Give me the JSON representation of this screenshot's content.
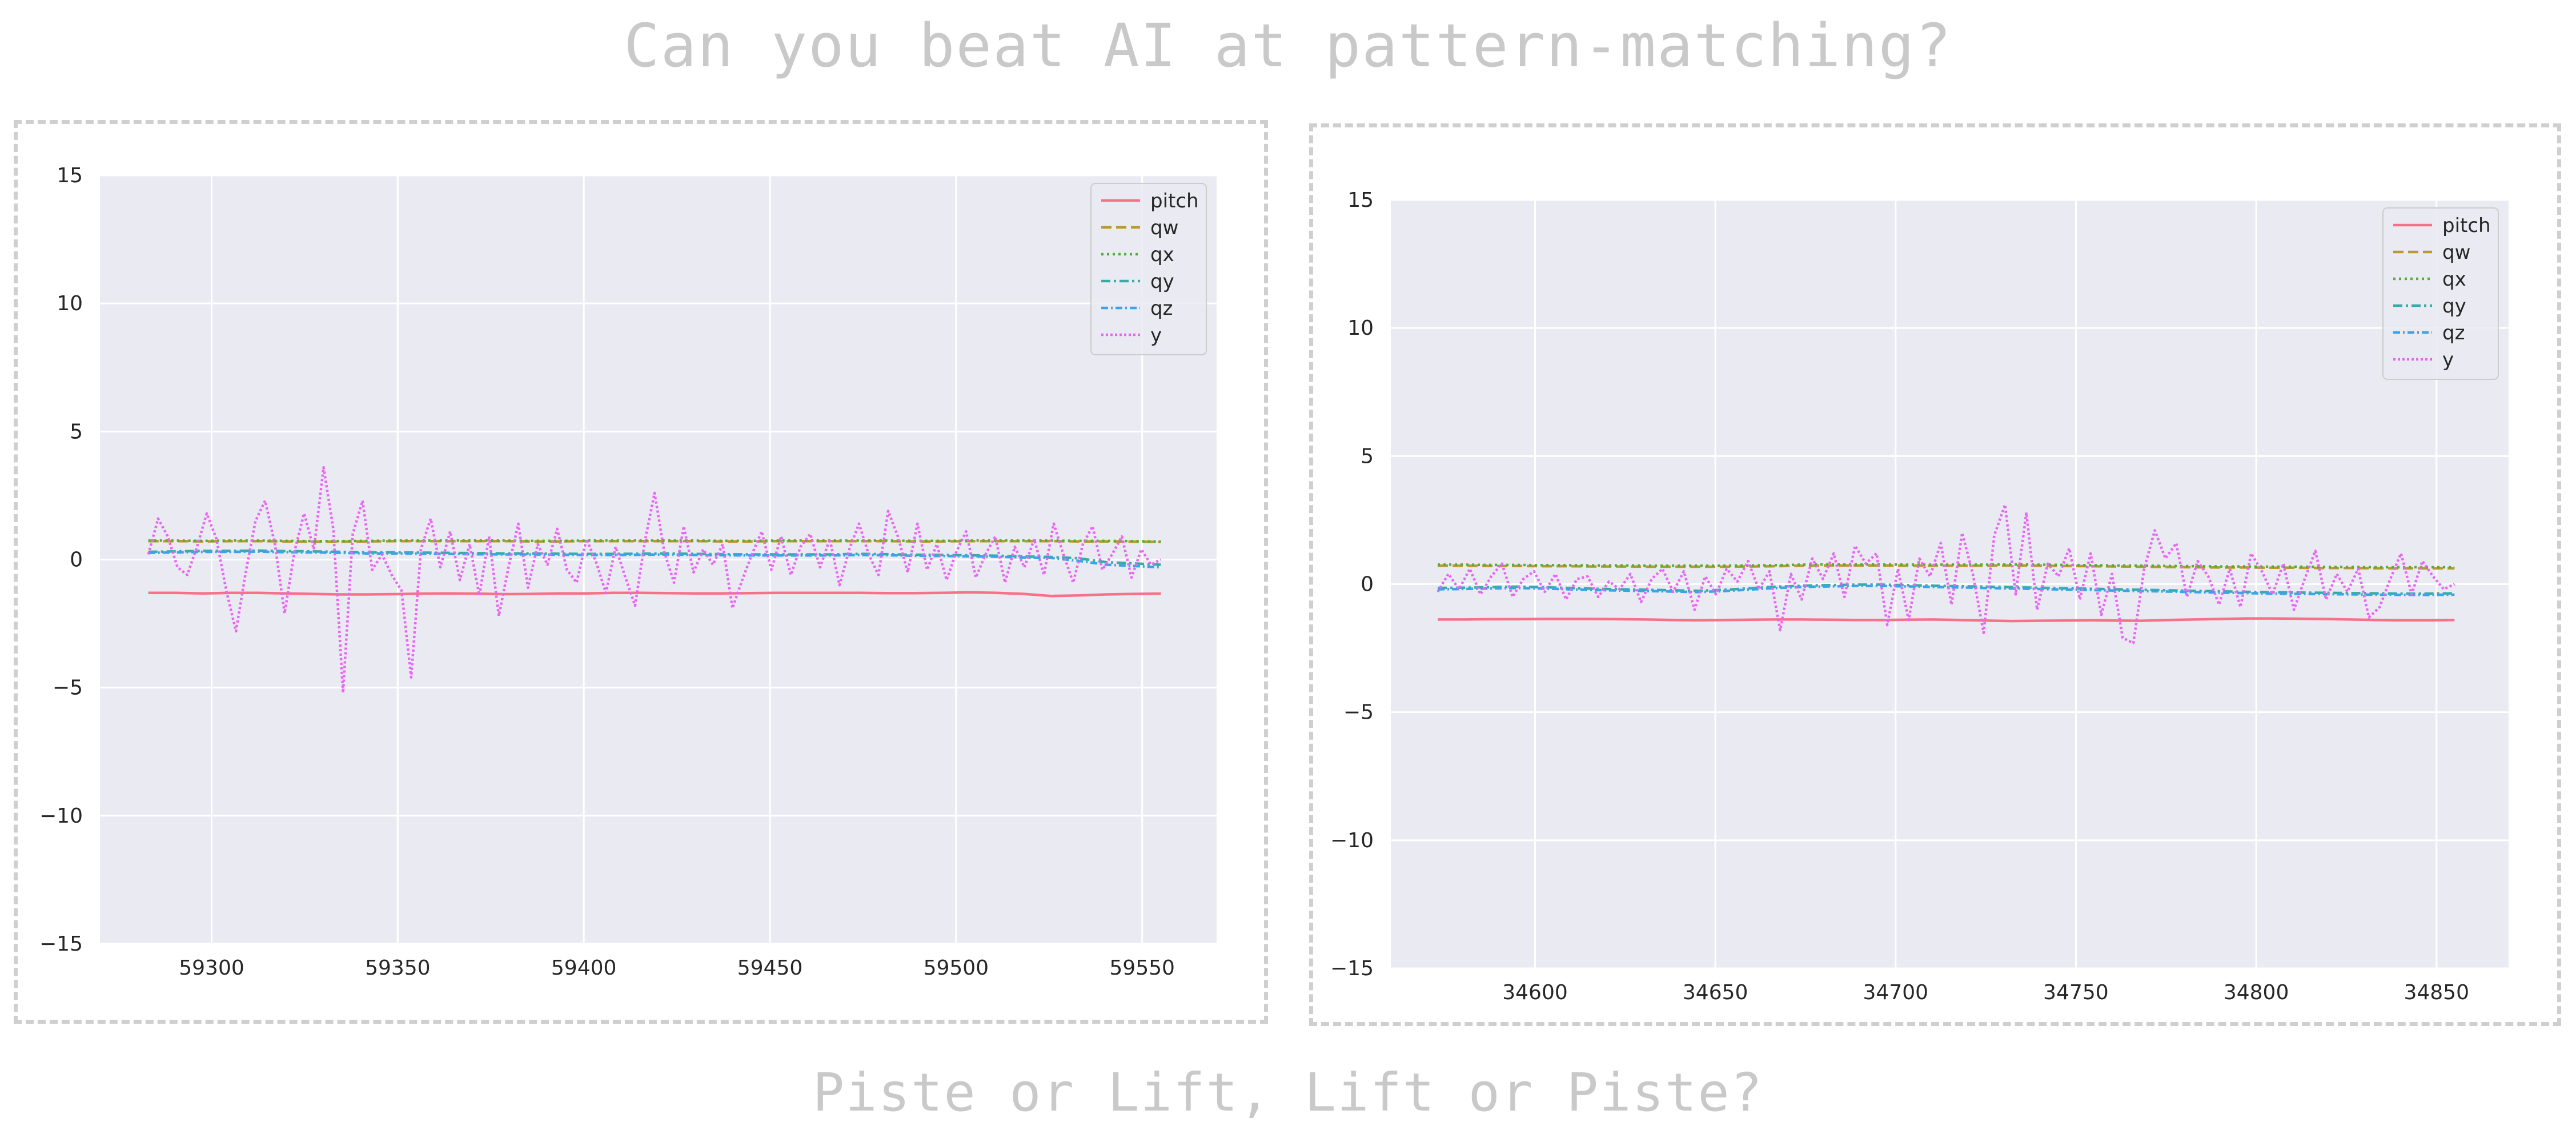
{
  "page": {
    "title": "Can you beat AI at pattern-matching?",
    "subtitle": "Piste or Lift, Lift or Piste?"
  },
  "colors": {
    "plot_background": "#eaeaf2",
    "grid": "#ffffff",
    "pitch": "#f77189",
    "qw": "#bb9832",
    "qx": "#50b131",
    "qy": "#36ada4",
    "qz": "#3ba3ec",
    "y": "#e866f4"
  },
  "chart_data": [
    {
      "type": "line",
      "title": "",
      "xlabel": "",
      "ylabel": "",
      "xlim": [
        59270,
        59570
      ],
      "ylim": [
        -15,
        15
      ],
      "x_ticks": [
        59300,
        59350,
        59400,
        59450,
        59500,
        59550
      ],
      "y_ticks": [
        -15,
        -10,
        -5,
        0,
        5,
        10,
        15
      ],
      "grid": true,
      "legend": "top-right",
      "x_start": 59283,
      "x_end": 59555,
      "series": [
        {
          "name": "pitch",
          "style": "solid",
          "values": [
            -1.3,
            -1.3,
            -1.32,
            -1.3,
            -1.3,
            -1.32,
            -1.34,
            -1.36,
            -1.36,
            -1.35,
            -1.33,
            -1.32,
            -1.33,
            -1.35,
            -1.34,
            -1.32,
            -1.32,
            -1.3,
            -1.3,
            -1.31,
            -1.32,
            -1.32,
            -1.31,
            -1.3,
            -1.3,
            -1.3,
            -1.3,
            -1.31,
            -1.31,
            -1.3,
            -1.28,
            -1.3,
            -1.34,
            -1.42,
            -1.4,
            -1.36,
            -1.34,
            -1.33
          ]
        },
        {
          "name": "qw",
          "style": "dashed",
          "values": [
            0.72,
            0.72,
            0.71,
            0.72,
            0.72,
            0.71,
            0.7,
            0.7,
            0.71,
            0.72,
            0.72,
            0.72,
            0.72,
            0.72,
            0.71,
            0.71,
            0.72,
            0.72,
            0.72,
            0.72,
            0.72,
            0.71,
            0.71,
            0.72,
            0.72,
            0.72,
            0.72,
            0.72,
            0.71,
            0.71,
            0.72,
            0.72,
            0.72,
            0.72,
            0.71,
            0.71,
            0.7,
            0.69
          ]
        },
        {
          "name": "qx",
          "style": "dotted",
          "values": [
            0.74,
            0.74,
            0.73,
            0.74,
            0.74,
            0.73,
            0.72,
            0.72,
            0.73,
            0.74,
            0.74,
            0.74,
            0.74,
            0.74,
            0.73,
            0.73,
            0.74,
            0.74,
            0.74,
            0.74,
            0.74,
            0.73,
            0.73,
            0.74,
            0.74,
            0.74,
            0.74,
            0.74,
            0.73,
            0.73,
            0.74,
            0.74,
            0.74,
            0.74,
            0.73,
            0.73,
            0.72,
            0.7
          ]
        },
        {
          "name": "qy",
          "style": "dashdot",
          "values": [
            0.3,
            0.32,
            0.34,
            0.34,
            0.35,
            0.33,
            0.32,
            0.3,
            0.28,
            0.28,
            0.27,
            0.26,
            0.25,
            0.24,
            0.24,
            0.23,
            0.22,
            0.22,
            0.23,
            0.24,
            0.22,
            0.21,
            0.2,
            0.2,
            0.2,
            0.2,
            0.22,
            0.21,
            0.19,
            0.18,
            0.17,
            0.15,
            0.12,
            0.1,
            0.05,
            -0.1,
            -0.15,
            -0.2
          ]
        },
        {
          "name": "qz",
          "style": "dashdot2",
          "values": [
            0.26,
            0.28,
            0.3,
            0.3,
            0.31,
            0.29,
            0.28,
            0.26,
            0.24,
            0.24,
            0.23,
            0.22,
            0.21,
            0.2,
            0.2,
            0.19,
            0.18,
            0.18,
            0.19,
            0.2,
            0.18,
            0.17,
            0.16,
            0.16,
            0.16,
            0.16,
            0.18,
            0.17,
            0.15,
            0.14,
            0.13,
            0.11,
            0.08,
            0.06,
            -0.05,
            -0.2,
            -0.25,
            -0.3
          ]
        },
        {
          "name": "y",
          "style": "dense-dotted",
          "values": [
            0.2,
            1.6,
            0.9,
            -0.3,
            -0.6,
            0.5,
            1.8,
            0.8,
            -1.2,
            -2.8,
            -0.5,
            1.5,
            2.3,
            0.6,
            -2.1,
            0.3,
            1.8,
            0.4,
            3.6,
            1.2,
            -5.2,
            1.0,
            2.3,
            -0.4,
            0.2,
            -0.6,
            -1.2,
            -4.6,
            0.4,
            1.6,
            -0.3,
            1.1,
            -0.8,
            0.6,
            -1.4,
            0.9,
            -2.2,
            -0.3,
            1.4,
            -1.1,
            0.6,
            -0.2,
            1.2,
            -0.4,
            -0.9,
            0.8,
            -0.1,
            -1.3,
            0.5,
            -0.7,
            -1.8,
            0.7,
            2.6,
            0.3,
            -0.9,
            1.3,
            -0.5,
            0.4,
            -0.2,
            0.6,
            -1.9,
            -0.8,
            0.2,
            1.1,
            -0.4,
            0.9,
            -0.6,
            0.5,
            1.0,
            -0.3,
            0.8,
            -1.0,
            0.4,
            1.4,
            0.2,
            -0.6,
            1.9,
            0.9,
            -0.5,
            1.4,
            -0.4,
            0.6,
            -0.8,
            0.3,
            1.1,
            -0.7,
            0.2,
            0.9,
            -0.9,
            0.5,
            -0.3,
            0.8,
            -0.6,
            1.4,
            0.2,
            -0.9,
            0.6,
            1.3,
            -0.4,
            0.2,
            0.9,
            -0.7,
            0.4,
            -0.2,
            0.0
          ]
        }
      ]
    },
    {
      "type": "line",
      "title": "",
      "xlabel": "",
      "ylabel": "",
      "xlim": [
        34560,
        34870
      ],
      "ylim": [
        -15,
        15
      ],
      "x_ticks": [
        34600,
        34650,
        34700,
        34750,
        34800,
        34850
      ],
      "y_ticks": [
        -15,
        -10,
        -5,
        0,
        5,
        10,
        15
      ],
      "grid": true,
      "legend": "top-right",
      "x_start": 34573,
      "x_end": 34855,
      "series": [
        {
          "name": "pitch",
          "style": "solid",
          "values": [
            -1.38,
            -1.38,
            -1.37,
            -1.37,
            -1.36,
            -1.36,
            -1.36,
            -1.37,
            -1.38,
            -1.4,
            -1.41,
            -1.4,
            -1.39,
            -1.38,
            -1.38,
            -1.39,
            -1.4,
            -1.4,
            -1.39,
            -1.38,
            -1.4,
            -1.42,
            -1.44,
            -1.43,
            -1.42,
            -1.41,
            -1.42,
            -1.43,
            -1.4,
            -1.38,
            -1.36,
            -1.34,
            -1.34,
            -1.35,
            -1.36,
            -1.38,
            -1.4,
            -1.41,
            -1.41,
            -1.4
          ]
        },
        {
          "name": "qw",
          "style": "dashed",
          "values": [
            0.72,
            0.72,
            0.71,
            0.71,
            0.7,
            0.7,
            0.69,
            0.69,
            0.68,
            0.68,
            0.68,
            0.68,
            0.69,
            0.7,
            0.72,
            0.73,
            0.73,
            0.73,
            0.72,
            0.72,
            0.72,
            0.72,
            0.73,
            0.72,
            0.71,
            0.7,
            0.69,
            0.68,
            0.67,
            0.66,
            0.65,
            0.65,
            0.64,
            0.64,
            0.63,
            0.63,
            0.62,
            0.62,
            0.62,
            0.62
          ]
        },
        {
          "name": "qx",
          "style": "dotted",
          "values": [
            0.76,
            0.76,
            0.75,
            0.75,
            0.74,
            0.74,
            0.73,
            0.73,
            0.72,
            0.72,
            0.72,
            0.72,
            0.73,
            0.74,
            0.76,
            0.77,
            0.77,
            0.77,
            0.76,
            0.76,
            0.76,
            0.76,
            0.77,
            0.76,
            0.75,
            0.74,
            0.73,
            0.72,
            0.71,
            0.7,
            0.69,
            0.69,
            0.68,
            0.68,
            0.67,
            0.67,
            0.66,
            0.66,
            0.66,
            0.66
          ]
        },
        {
          "name": "qy",
          "style": "dashdot",
          "values": [
            -0.15,
            -0.14,
            -0.12,
            -0.1,
            -0.12,
            -0.15,
            -0.18,
            -0.2,
            -0.22,
            -0.24,
            -0.26,
            -0.22,
            -0.16,
            -0.1,
            -0.06,
            -0.04,
            -0.02,
            -0.02,
            -0.04,
            -0.06,
            -0.08,
            -0.1,
            -0.12,
            -0.14,
            -0.16,
            -0.18,
            -0.2,
            -0.22,
            -0.24,
            -0.26,
            -0.28,
            -0.3,
            -0.32,
            -0.33,
            -0.34,
            -0.35,
            -0.36,
            -0.37,
            -0.37,
            -0.36
          ]
        },
        {
          "name": "qz",
          "style": "dashdot2",
          "values": [
            -0.2,
            -0.19,
            -0.17,
            -0.15,
            -0.17,
            -0.2,
            -0.23,
            -0.25,
            -0.27,
            -0.29,
            -0.31,
            -0.27,
            -0.21,
            -0.15,
            -0.11,
            -0.09,
            -0.07,
            -0.07,
            -0.09,
            -0.11,
            -0.13,
            -0.15,
            -0.17,
            -0.19,
            -0.21,
            -0.23,
            -0.25,
            -0.27,
            -0.29,
            -0.31,
            -0.33,
            -0.35,
            -0.37,
            -0.38,
            -0.39,
            -0.4,
            -0.41,
            -0.42,
            -0.42,
            -0.41
          ]
        },
        {
          "name": "y",
          "style": "dense-dotted",
          "values": [
            -0.3,
            0.4,
            -0.2,
            0.6,
            -0.4,
            0.3,
            0.8,
            -0.5,
            0.2,
            0.5,
            -0.3,
            0.4,
            -0.6,
            0.2,
            0.3,
            -0.5,
            0.1,
            -0.2,
            0.4,
            -0.7,
            0.2,
            0.6,
            -0.3,
            0.5,
            -1.0,
            0.3,
            -0.4,
            0.6,
            0.1,
            0.9,
            -0.2,
            0.5,
            -1.8,
            0.4,
            -0.6,
            1.0,
            0.2,
            1.2,
            -0.5,
            1.5,
            0.8,
            1.2,
            -1.6,
            0.6,
            -1.4,
            1.0,
            0.3,
            1.6,
            -0.8,
            2.0,
            0.4,
            -1.9,
            1.9,
            3.1,
            -0.4,
            2.8,
            -1.0,
            0.8,
            0.3,
            1.4,
            -0.6,
            1.2,
            -1.2,
            0.4,
            -2.1,
            -2.3,
            0.6,
            2.1,
            1.0,
            1.6,
            -0.5,
            0.9,
            0.3,
            -0.8,
            0.6,
            -0.9,
            1.2,
            0.5,
            -0.4,
            0.8,
            -1.0,
            0.2,
            1.3,
            -0.6,
            0.4,
            -0.3,
            0.6,
            -1.3,
            -0.9,
            0.2,
            1.2,
            -0.4,
            0.9,
            0.3,
            -0.2,
            0.0
          ]
        }
      ]
    }
  ]
}
